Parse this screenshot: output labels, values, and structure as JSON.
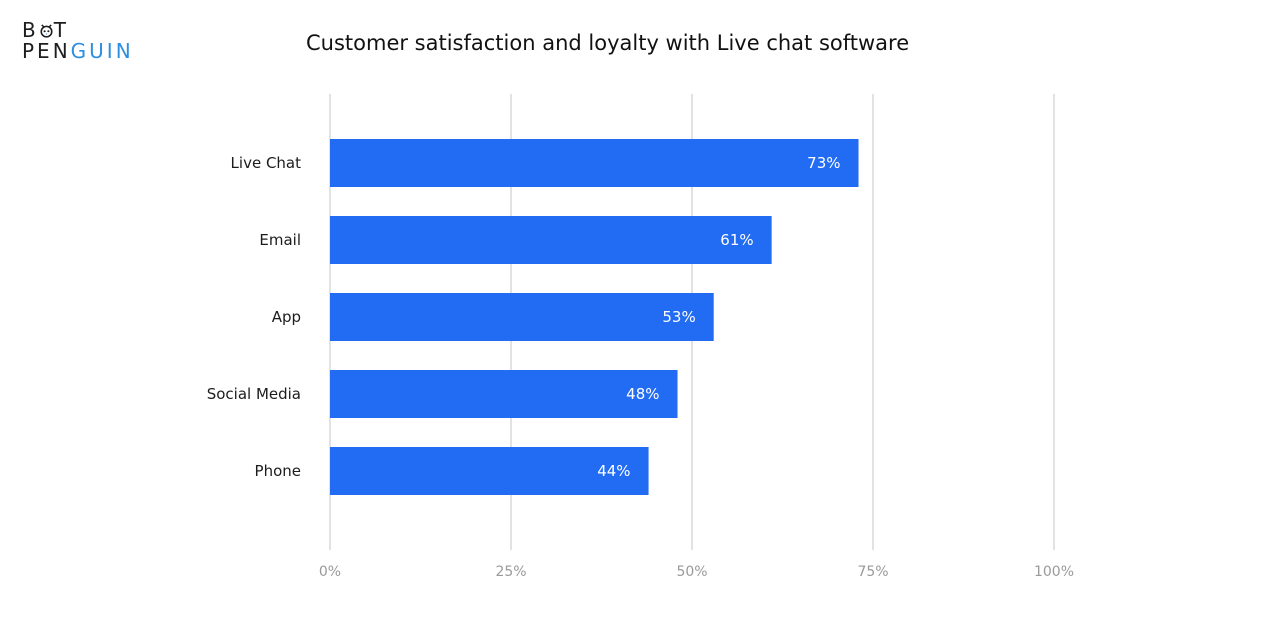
{
  "brand": {
    "logo_line1_part1": "B",
    "logo_line1_part2": "T",
    "logo_line2_part1": "PEN",
    "logo_line2_part2": "GUIN",
    "accent_color": "#2e8fe0"
  },
  "chart_data": {
    "type": "bar",
    "orientation": "horizontal",
    "title": "Customer satisfaction and loyalty with Live chat software",
    "xlabel": "",
    "ylabel": "",
    "categories": [
      "Live Chat",
      "Email",
      "App",
      "Social Media",
      "Phone"
    ],
    "values": [
      73,
      61,
      53,
      48,
      44
    ],
    "data_labels": [
      "73%",
      "61%",
      "53%",
      "48%",
      "44%"
    ],
    "xlim": [
      0,
      100
    ],
    "x_ticks": [
      0,
      25,
      50,
      75,
      100
    ],
    "x_tick_labels": [
      "0%",
      "25%",
      "50%",
      "75%",
      "100%"
    ],
    "grid": true,
    "bar_color": "#216cf3",
    "label_color": "#ffffff",
    "gridline_color": "#c4c4c4"
  }
}
